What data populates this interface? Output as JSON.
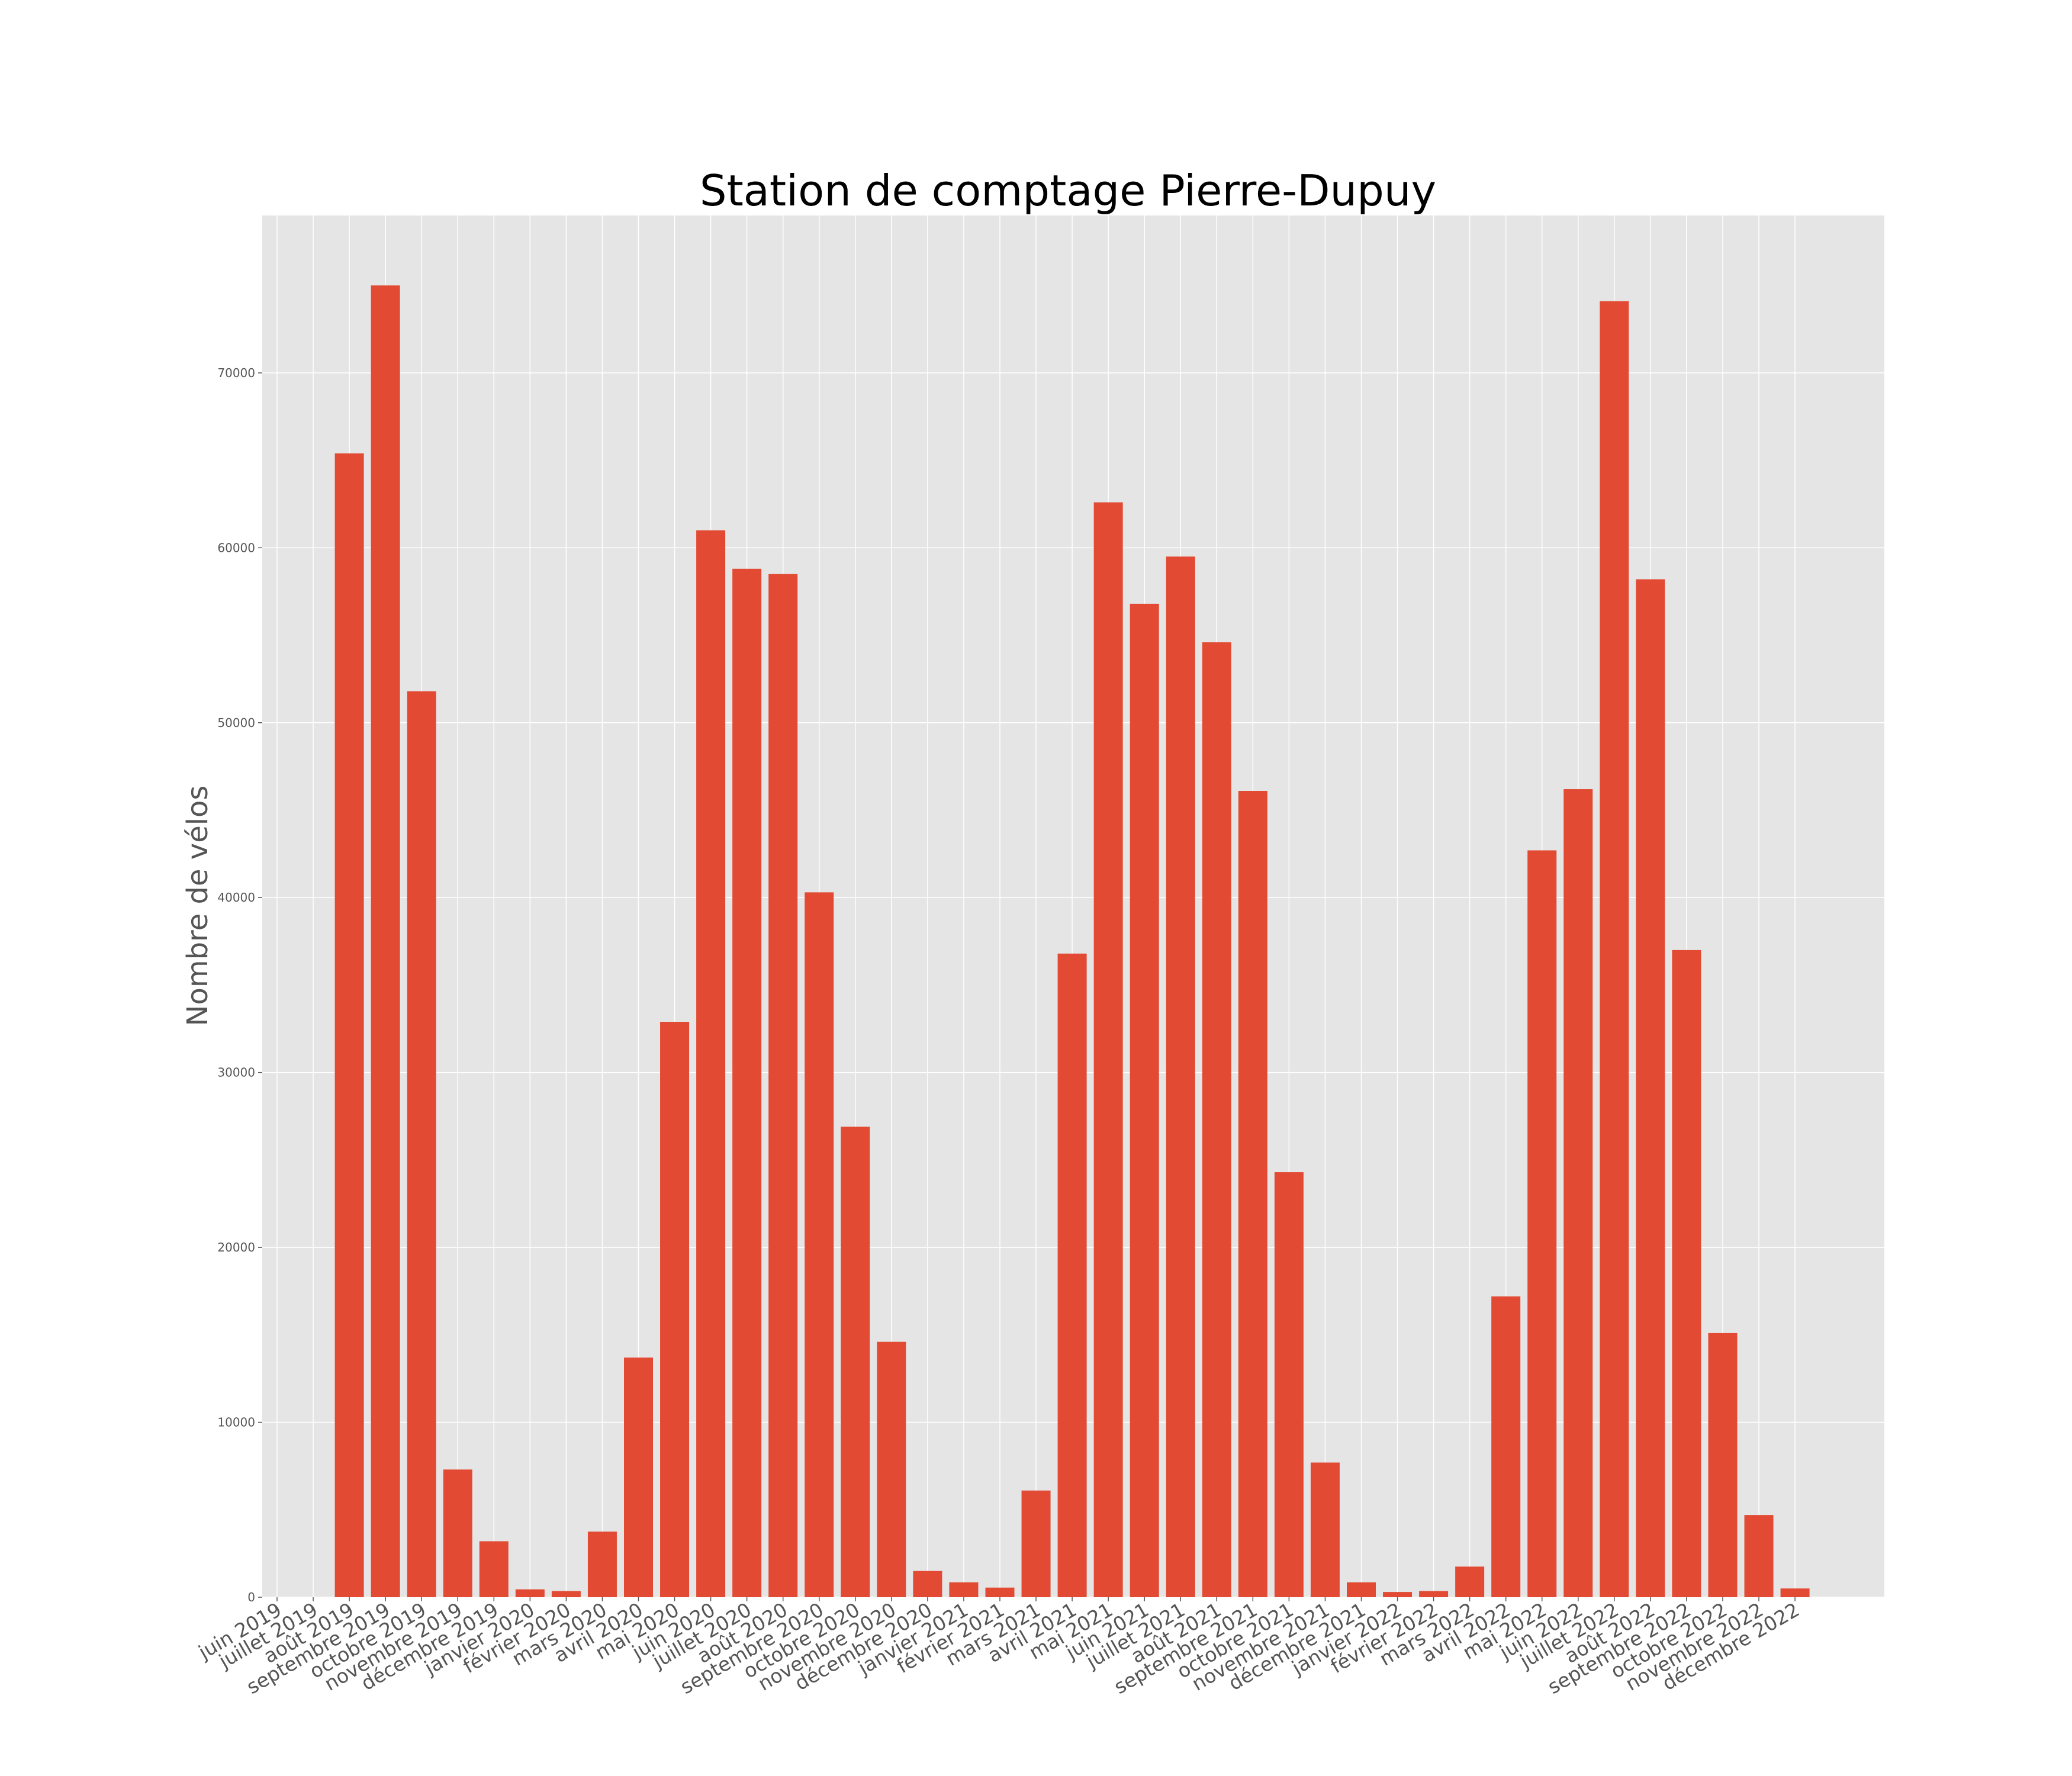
{
  "chart_data": {
    "type": "bar",
    "title": "Station de comptage Pierre-Dupuy",
    "xlabel": "",
    "ylabel": "Nombre de vélos",
    "ylim": [
      0,
      79000
    ],
    "yticks": [
      0,
      10000,
      20000,
      30000,
      40000,
      50000,
      60000,
      70000
    ],
    "grid": true,
    "bar_color": "#E24A33",
    "background_color": "#E5E5E5",
    "categories": [
      "juin 2019",
      "juillet 2019",
      "août 2019",
      "septembre 2019",
      "octobre 2019",
      "novembre 2019",
      "décembre 2019",
      "janvier 2020",
      "février 2020",
      "mars 2020",
      "avril 2020",
      "mai 2020",
      "juin 2020",
      "juillet 2020",
      "août 2020",
      "septembre 2020",
      "octobre 2020",
      "novembre 2020",
      "décembre 2020",
      "janvier 2021",
      "février 2021",
      "mars 2021",
      "avril 2021",
      "mai 2021",
      "juin 2021",
      "juillet 2021",
      "août 2021",
      "septembre 2021",
      "octobre 2021",
      "novembre 2021",
      "décembre 2021",
      "janvier 2022",
      "février 2022",
      "mars 2022",
      "avril 2022",
      "mai 2022",
      "juin 2022",
      "juillet 2022",
      "août 2022",
      "septembre 2022",
      "octobre 2022",
      "novembre 2022",
      "décembre 2022"
    ],
    "values": [
      0,
      0,
      65400,
      75000,
      51800,
      7300,
      3200,
      450,
      350,
      3750,
      13700,
      32900,
      61000,
      58800,
      58500,
      40300,
      26900,
      14600,
      1500,
      850,
      550,
      6100,
      36800,
      62600,
      56800,
      59500,
      54600,
      46100,
      24300,
      7700,
      850,
      300,
      350,
      1750,
      17200,
      42700,
      46200,
      74100,
      58200,
      37000,
      15100,
      4700,
      500
    ]
  }
}
